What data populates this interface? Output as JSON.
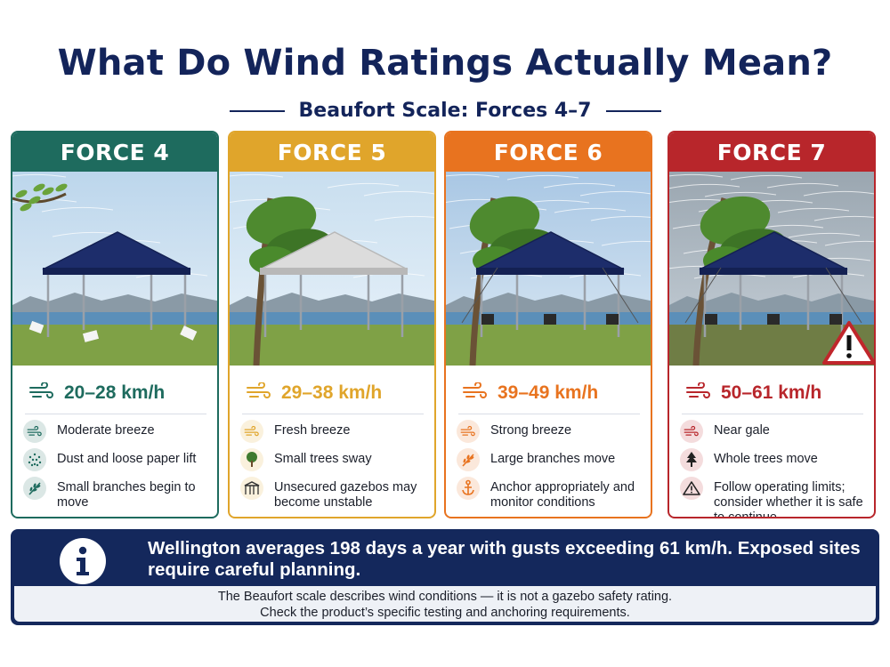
{
  "title": "What Do Wind Ratings Actually Mean?",
  "subtitle": "Beaufort Scale: Forces 4–7",
  "cards": [
    {
      "label": "FORCE 4",
      "speed": "20–28 km/h",
      "color": "#1e6b5e",
      "items": [
        {
          "icon": "wind-icon",
          "text": "Moderate breeze"
        },
        {
          "icon": "dust-icon",
          "text": "Dust and loose paper lift"
        },
        {
          "icon": "branch-icon",
          "text": "Small branches begin to move"
        }
      ]
    },
    {
      "label": "FORCE 5",
      "speed": "29–38 km/h",
      "color": "#e0a52b",
      "items": [
        {
          "icon": "wind-icon",
          "text": "Fresh breeze"
        },
        {
          "icon": "tree-icon",
          "text": "Small trees sway"
        },
        {
          "icon": "gazebo-icon",
          "text": "Unsecured gazebos may become unstable"
        }
      ]
    },
    {
      "label": "FORCE 6",
      "speed": "39–49 km/h",
      "color": "#e8731f",
      "items": [
        {
          "icon": "wind-icon",
          "text": "Strong breeze"
        },
        {
          "icon": "branch-icon",
          "text": "Large branches move"
        },
        {
          "icon": "anchor-icon",
          "text": "Anchor appropriately and monitor conditions"
        }
      ]
    },
    {
      "label": "FORCE 7",
      "speed": "50–61 km/h",
      "color": "#b8262b",
      "items": [
        {
          "icon": "wind-icon",
          "text": "Near gale"
        },
        {
          "icon": "pine-tree-icon",
          "text": "Whole trees move"
        },
        {
          "icon": "warning-icon",
          "text": "Follow operating limits; consider whether it is safe to continue"
        }
      ]
    }
  ],
  "info": {
    "headline": "Wellington averages 198 days a year with gusts exceeding 61 km/h. Exposed sites require careful planning.",
    "note_line1": "The Beaufort scale describes wind conditions — it is not a gazebo safety rating.",
    "note_line2": "Check the product’s specific testing and anchoring requirements."
  }
}
